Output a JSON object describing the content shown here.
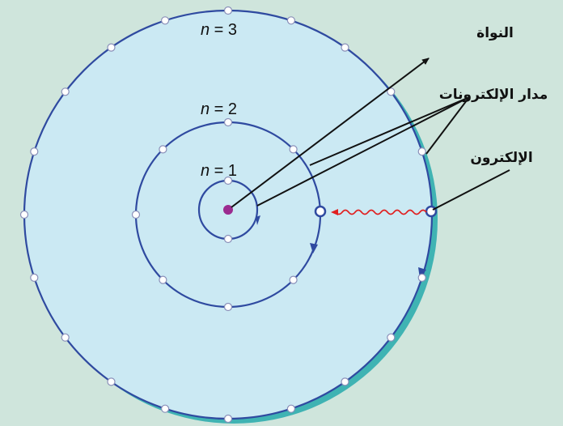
{
  "colors": {
    "background": "#cfe5dc",
    "atom_fill": "#cbe9f3",
    "shadow": "#3fb3b3",
    "orbit_stroke": "#2f4aa0",
    "electron_fill": "#ffffff",
    "nucleus": "#9b2b8f",
    "photon": "#e02020",
    "leader": "#111111"
  },
  "orbits": [
    {
      "label_var": "n",
      "label_eq": " = 1",
      "n": 1
    },
    {
      "label_var": "n",
      "label_eq": " = 2",
      "n": 2
    },
    {
      "label_var": "n",
      "label_eq": " = 3",
      "n": 3
    }
  ],
  "annotations": {
    "nucleus": "النواة",
    "electron_orbits": "مدار الإلكترونات",
    "electron": "الإلكترون"
  },
  "icons": {
    "nucleus": "nucleus-dot",
    "electron": "electron-circle",
    "photon": "photon-wave-arrow"
  }
}
